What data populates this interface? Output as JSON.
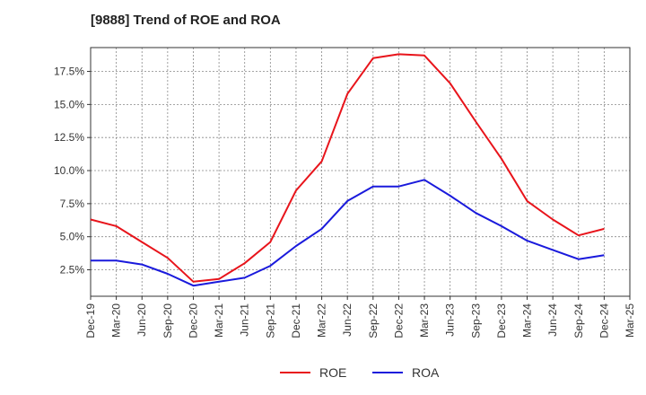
{
  "chart_data": {
    "type": "line",
    "title": "[9888]  Trend of ROE and ROA",
    "xlabel": "",
    "ylabel": "",
    "x_ticks": [
      "Dec-19",
      "Mar-20",
      "Jun-20",
      "Sep-20",
      "Dec-20",
      "Mar-21",
      "Jun-21",
      "Sep-21",
      "Dec-21",
      "Mar-22",
      "Jun-22",
      "Sep-22",
      "Dec-22",
      "Mar-23",
      "Jun-23",
      "Sep-23",
      "Dec-23",
      "Mar-24",
      "Jun-24",
      "Sep-24",
      "Dec-24",
      "Mar-25"
    ],
    "y_ticks": [
      "2.5%",
      "5.0%",
      "7.5%",
      "10.0%",
      "12.5%",
      "15.0%",
      "17.5%"
    ],
    "y_tick_values": [
      2.5,
      5.0,
      7.5,
      10.0,
      12.5,
      15.0,
      17.5
    ],
    "ylim": [
      0.5,
      19.3
    ],
    "grid": true,
    "legend_position": "bottom-center",
    "x": [
      "Dec-19",
      "Mar-20",
      "Jun-20",
      "Sep-20",
      "Dec-20",
      "Mar-21",
      "Jun-21",
      "Sep-21",
      "Dec-21",
      "Mar-22",
      "Jun-22",
      "Sep-22",
      "Dec-22",
      "Mar-23",
      "Jun-23",
      "Sep-23",
      "Dec-23",
      "Mar-24",
      "Jun-24",
      "Sep-24",
      "Dec-24"
    ],
    "series": [
      {
        "name": "ROE",
        "color": "#e8141b",
        "values": [
          6.3,
          5.8,
          4.6,
          3.4,
          1.6,
          1.8,
          3.0,
          4.6,
          8.5,
          10.7,
          15.8,
          18.5,
          18.8,
          18.7,
          16.6,
          13.7,
          10.9,
          7.7,
          6.3,
          5.1,
          5.6
        ]
      },
      {
        "name": "ROA",
        "color": "#1a1adc",
        "values": [
          3.2,
          3.2,
          2.9,
          2.2,
          1.3,
          1.6,
          1.9,
          2.8,
          4.3,
          5.6,
          7.7,
          8.8,
          8.8,
          9.3,
          8.1,
          6.8,
          5.8,
          4.7,
          4.0,
          3.3,
          3.6
        ]
      }
    ]
  }
}
